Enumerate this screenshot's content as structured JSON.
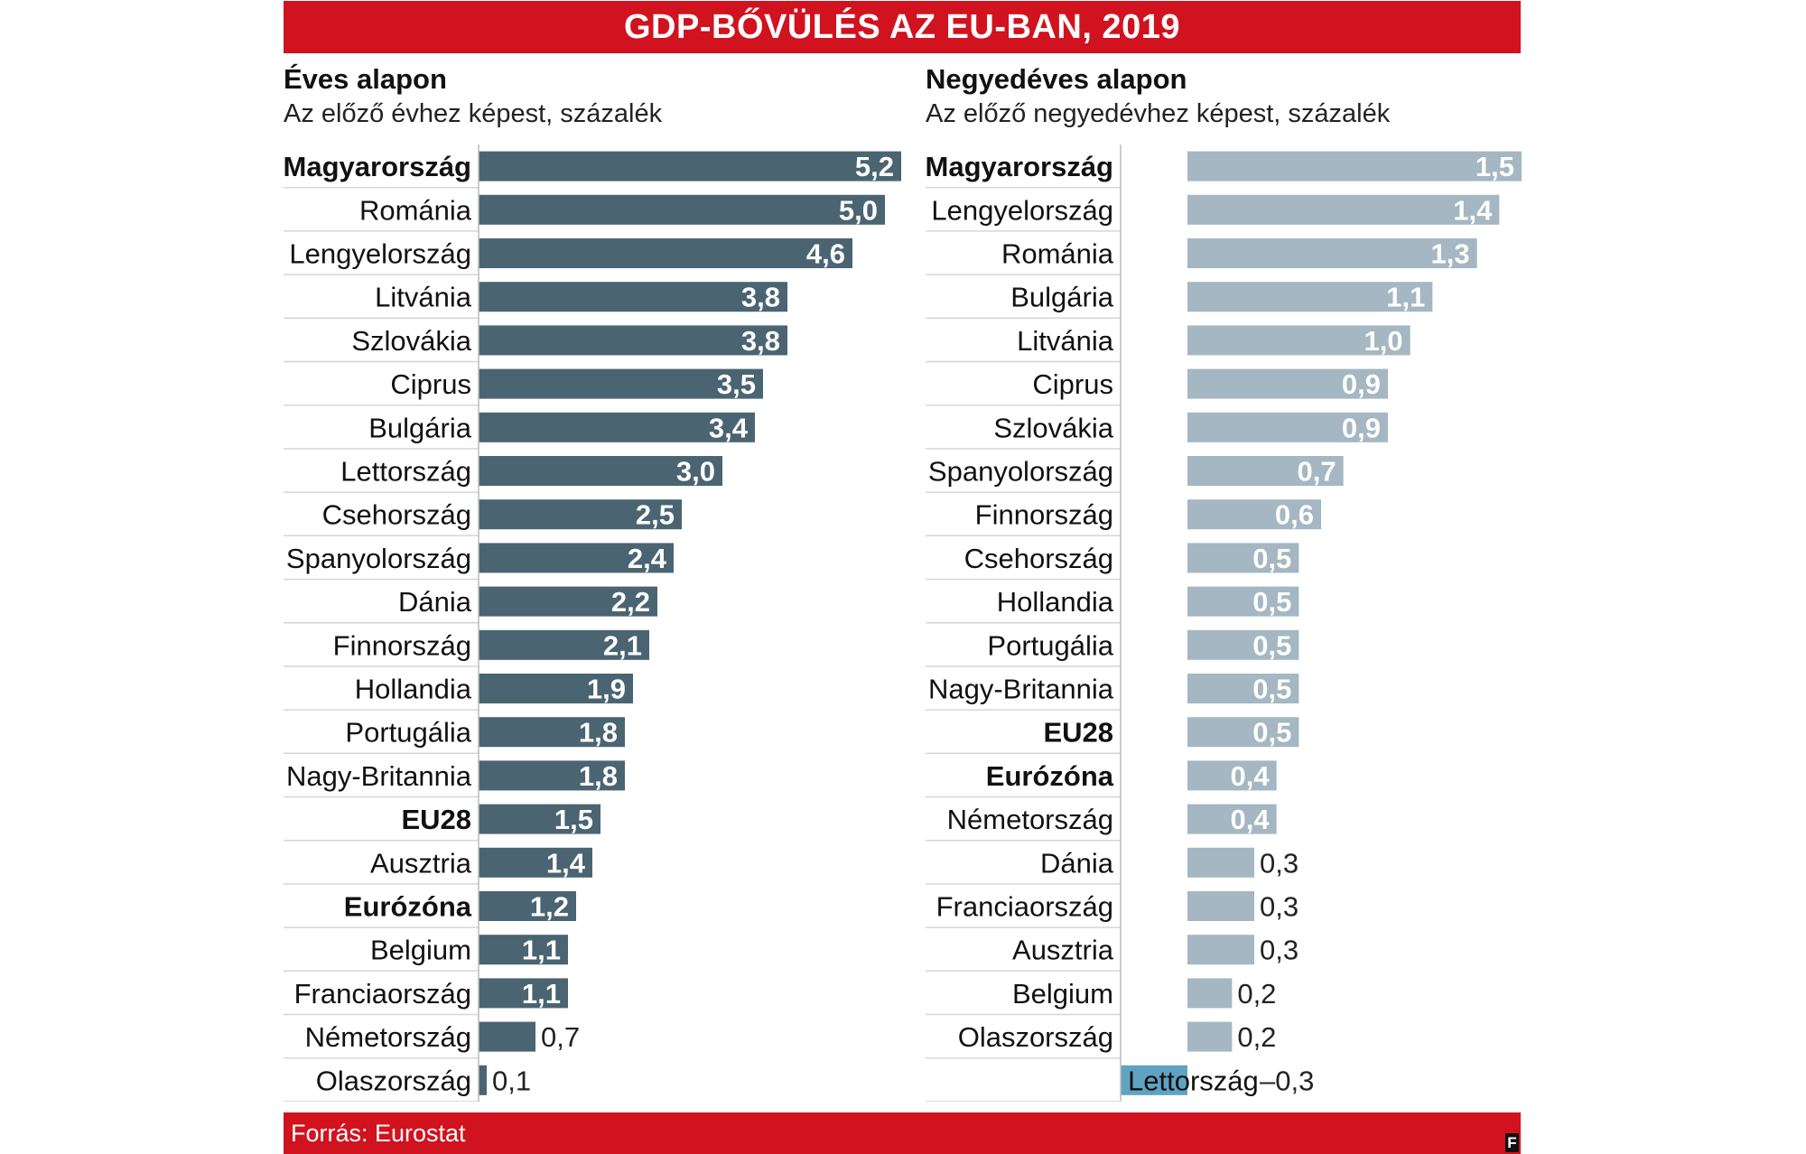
{
  "header": {
    "title": "GDP-BŐVÜLÉS AZ EU-BAN, 2019"
  },
  "footer": {
    "source": "Forrás: Eurostat",
    "logo": "F"
  },
  "colors": {
    "accent_red": "#d1121f",
    "annual_bar": "#4a6472",
    "quarterly_bar": "#a4b7c2",
    "negative_bar": "#5fa3c2"
  },
  "chart_data": [
    {
      "type": "bar",
      "orientation": "horizontal",
      "title": "Éves alapon",
      "subtitle": "Az előző évhez képest, százalék",
      "categories": [
        "Magyarország",
        "Románia",
        "Lengyelország",
        "Litvánia",
        "Szlovákia",
        "Ciprus",
        "Bulgária",
        "Lettország",
        "Csehország",
        "Spanyolország",
        "Dánia",
        "Finnország",
        "Hollandia",
        "Portugália",
        "Nagy-Britannia",
        "EU28",
        "Ausztria",
        "Eurózóna",
        "Belgium",
        "Franciaország",
        "Németország",
        "Olaszország"
      ],
      "values": [
        5.2,
        5.0,
        4.6,
        3.8,
        3.8,
        3.5,
        3.4,
        3.0,
        2.5,
        2.4,
        2.2,
        2.1,
        1.9,
        1.8,
        1.8,
        1.5,
        1.4,
        1.2,
        1.1,
        1.1,
        0.7,
        0.1
      ],
      "value_labels": [
        "5,2",
        "5,0",
        "4,6",
        "3,8",
        "3,8",
        "3,5",
        "3,4",
        "3,0",
        "2,5",
        "2,4",
        "2,2",
        "2,1",
        "1,9",
        "1,8",
        "1,8",
        "1,5",
        "1,4",
        "1,2",
        "1,1",
        "1,1",
        "0,7",
        "0,1"
      ],
      "bold_categories": [
        "Magyarország",
        "EU28",
        "Eurózóna"
      ],
      "xlim": [
        0,
        5.2
      ]
    },
    {
      "type": "bar",
      "orientation": "horizontal",
      "title": "Negyedéves alapon",
      "subtitle": "Az előző negyedévhez képest, százalék",
      "categories": [
        "Magyarország",
        "Lengyelország",
        "Románia",
        "Bulgária",
        "Litvánia",
        "Ciprus",
        "Szlovákia",
        "Spanyolország",
        "Finnország",
        "Csehország",
        "Hollandia",
        "Portugália",
        "Nagy-Britannia",
        "EU28",
        "Eurózóna",
        "Németország",
        "Dánia",
        "Franciaország",
        "Ausztria",
        "Belgium",
        "Olaszország",
        "Lettország"
      ],
      "values": [
        1.5,
        1.4,
        1.3,
        1.1,
        1.0,
        0.9,
        0.9,
        0.7,
        0.6,
        0.5,
        0.5,
        0.5,
        0.5,
        0.5,
        0.4,
        0.4,
        0.3,
        0.3,
        0.3,
        0.2,
        0.2,
        -0.3
      ],
      "value_labels": [
        "1,5",
        "1,4",
        "1,3",
        "1,1",
        "1,0",
        "0,9",
        "0,9",
        "0,7",
        "0,6",
        "0,5",
        "0,5",
        "0,5",
        "0,5",
        "0,5",
        "0,4",
        "0,4",
        "0,3",
        "0,3",
        "0,3",
        "0,2",
        "0,2",
        "–0,3"
      ],
      "bold_categories": [
        "Magyarország",
        "EU28",
        "Eurózóna"
      ],
      "xlim": [
        -0.3,
        1.5
      ]
    }
  ]
}
